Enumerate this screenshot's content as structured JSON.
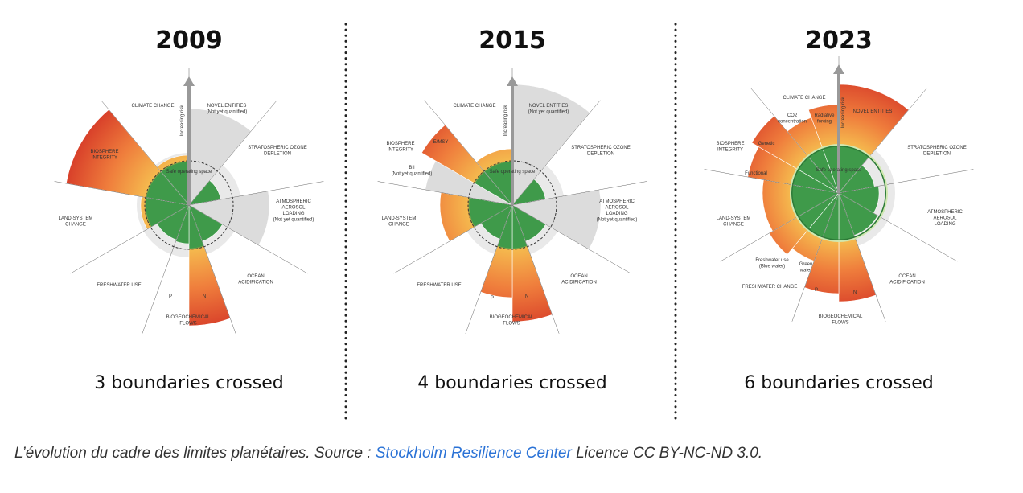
{
  "panels": [
    {
      "year": "2009",
      "summary": "3 boundaries crossed",
      "labels": [
        {
          "lines": [
            "CLIMATE CHANGE"
          ]
        },
        {
          "lines": [
            "NOVEL ENTITIES",
            "(Not yet quantified)"
          ]
        },
        {
          "lines": [
            "STRATOSPHERIC OZONE",
            "DEPLETION"
          ]
        },
        {
          "lines": [
            "ATMOSPHERIC",
            "AEROSOL",
            "LOADING",
            "(Not yet quantified)"
          ]
        },
        {
          "lines": [
            "OCEAN",
            "ACIDIFICATION"
          ]
        },
        {
          "lines": [
            "BIOGEOCHEMICAL",
            "FLOWS"
          ]
        },
        {
          "lines": [
            "FRESHWATER USE"
          ]
        },
        {
          "lines": [
            "LAND-SYSTEM",
            "CHANGE"
          ]
        },
        {
          "lines": [
            "BIOSPHERE",
            "INTEGRITY"
          ]
        },
        {
          "lines": [
            "P"
          ]
        },
        {
          "lines": [
            "N"
          ]
        },
        {
          "lines": [
            "Safe operating space"
          ]
        },
        {
          "lines": [
            "Increasing risk"
          ]
        }
      ]
    },
    {
      "year": "2015",
      "summary": "4 boundaries crossed",
      "labels": [
        {
          "lines": [
            "CLIMATE CHANGE"
          ]
        },
        {
          "lines": [
            "NOVEL ENTITIES",
            "(Not yet quantified)"
          ]
        },
        {
          "lines": [
            "STRATOSPHERIC OZONE",
            "DEPLETION"
          ]
        },
        {
          "lines": [
            "ATMOSPHERIC",
            "AEROSOL",
            "LOADING",
            "(Not yet quantified)"
          ]
        },
        {
          "lines": [
            "OCEAN",
            "ACIDIFICATION"
          ]
        },
        {
          "lines": [
            "BIOGEOCHEMICAL",
            "FLOWS"
          ]
        },
        {
          "lines": [
            "FRESHWATER USE"
          ]
        },
        {
          "lines": [
            "LAND-SYSTEM",
            "CHANGE"
          ]
        },
        {
          "lines": [
            "BIOSPHERE",
            "INTEGRITY"
          ]
        },
        {
          "lines": [
            "P"
          ]
        },
        {
          "lines": [
            "N"
          ]
        },
        {
          "lines": [
            "Safe operating space"
          ]
        },
        {
          "lines": [
            "Increasing risk"
          ]
        },
        {
          "lines": [
            "E/MSY"
          ]
        },
        {
          "lines": [
            "BII",
            "(Not yet quantified)"
          ]
        }
      ]
    },
    {
      "year": "2023",
      "summary": "6 boundaries crossed",
      "labels": [
        {
          "lines": [
            "CLIMATE CHANGE"
          ]
        },
        {
          "lines": [
            "NOVEL ENTITIES"
          ]
        },
        {
          "lines": [
            "STRATOSPHERIC OZONE",
            "DEPLETION"
          ]
        },
        {
          "lines": [
            "ATMOSPHERIC",
            "AEROSOL",
            "LOADING"
          ]
        },
        {
          "lines": [
            "OCEAN",
            "ACIDIFICATION"
          ]
        },
        {
          "lines": [
            "BIOGEOCHEMICAL",
            "FLOWS"
          ]
        },
        {
          "lines": [
            "FRESHWATER CHANGE"
          ]
        },
        {
          "lines": [
            "LAND-SYSTEM",
            "CHANGE"
          ]
        },
        {
          "lines": [
            "BIOSPHERE",
            "INTEGRITY"
          ]
        },
        {
          "lines": [
            "P"
          ]
        },
        {
          "lines": [
            "N"
          ]
        },
        {
          "lines": [
            "Safe operating space"
          ]
        },
        {
          "lines": [
            "Increasing risk"
          ]
        },
        {
          "lines": [
            "CO2",
            "concentration"
          ]
        },
        {
          "lines": [
            "Radiative",
            "forcing"
          ]
        },
        {
          "lines": [
            "Freshwater use",
            "(Blue water)"
          ]
        },
        {
          "lines": [
            "Green",
            "water"
          ]
        },
        {
          "lines": [
            "Genetic"
          ]
        },
        {
          "lines": [
            "Functional"
          ]
        }
      ]
    }
  ],
  "caption": {
    "text": "L’évolution du cadre des limites planétaires. Source :",
    "link": "Stockholm Resilience Center",
    "license": "Licence CC BY-NC-ND 3.0."
  }
}
